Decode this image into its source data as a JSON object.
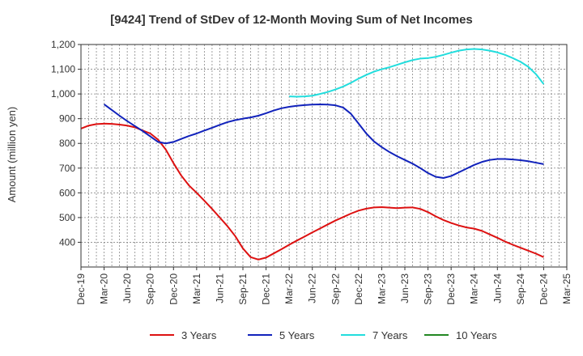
{
  "chart_data": {
    "type": "line",
    "title": "[9424]  Trend of StDev of 12-Month Moving Sum of Net Incomes",
    "ylabel": "Amount (million yen)",
    "xlabel": "",
    "ylim": [
      300,
      1200
    ],
    "y_ticks": [
      400,
      500,
      600,
      700,
      800,
      900,
      1000,
      1100,
      1200
    ],
    "y_tick_labels": [
      "400",
      "500",
      "600",
      "700",
      "800",
      "900",
      "1,000",
      "1,100",
      "1,200"
    ],
    "x_ticks": [
      "Dec-19",
      "Mar-20",
      "Jun-20",
      "Sep-20",
      "Dec-20",
      "Mar-21",
      "Jun-21",
      "Sep-21",
      "Dec-21",
      "Mar-22",
      "Jun-22",
      "Sep-22",
      "Dec-22",
      "Mar-23",
      "Jun-23",
      "Sep-23",
      "Dec-23",
      "Mar-24",
      "Jun-24",
      "Sep-24",
      "Dec-24",
      "Mar-25"
    ],
    "grid": true,
    "legend_position": "bottom",
    "series": [
      {
        "name": "3 Years",
        "color": "#dd1111",
        "points": [
          [
            "Dec-19",
            860
          ],
          [
            "Jan-20",
            872
          ],
          [
            "Feb-20",
            878
          ],
          [
            "Mar-20",
            880
          ],
          [
            "Apr-20",
            879
          ],
          [
            "May-20",
            876
          ],
          [
            "Jun-20",
            872
          ],
          [
            "Jul-20",
            865
          ],
          [
            "Aug-20",
            852
          ],
          [
            "Sep-20",
            840
          ],
          [
            "Oct-20",
            815
          ],
          [
            "Nov-20",
            775
          ],
          [
            "Dec-20",
            720
          ],
          [
            "Jan-21",
            670
          ],
          [
            "Feb-21",
            630
          ],
          [
            "Mar-21",
            600
          ],
          [
            "Apr-21",
            568
          ],
          [
            "May-21",
            535
          ],
          [
            "Jun-21",
            500
          ],
          [
            "Jul-21",
            465
          ],
          [
            "Aug-21",
            425
          ],
          [
            "Sep-21",
            375
          ],
          [
            "Oct-21",
            340
          ],
          [
            "Nov-21",
            330
          ],
          [
            "Dec-21",
            338
          ],
          [
            "Jan-22",
            355
          ],
          [
            "Feb-22",
            372
          ],
          [
            "Mar-22",
            390
          ],
          [
            "Apr-22",
            407
          ],
          [
            "May-22",
            423
          ],
          [
            "Jun-22",
            440
          ],
          [
            "Jul-22",
            456
          ],
          [
            "Aug-22",
            472
          ],
          [
            "Sep-22",
            488
          ],
          [
            "Oct-22",
            502
          ],
          [
            "Nov-22",
            516
          ],
          [
            "Dec-22",
            528
          ],
          [
            "Jan-23",
            536
          ],
          [
            "Feb-23",
            541
          ],
          [
            "Mar-23",
            542
          ],
          [
            "Apr-23",
            540
          ],
          [
            "May-23",
            538
          ],
          [
            "Jun-23",
            540
          ],
          [
            "Jul-23",
            541
          ],
          [
            "Aug-23",
            535
          ],
          [
            "Sep-23",
            522
          ],
          [
            "Oct-23",
            505
          ],
          [
            "Nov-23",
            490
          ],
          [
            "Dec-23",
            478
          ],
          [
            "Jan-24",
            468
          ],
          [
            "Feb-24",
            460
          ],
          [
            "Mar-24",
            455
          ],
          [
            "Apr-24",
            446
          ],
          [
            "May-24",
            432
          ],
          [
            "Jun-24",
            418
          ],
          [
            "Jul-24",
            403
          ],
          [
            "Aug-24",
            390
          ],
          [
            "Sep-24",
            378
          ],
          [
            "Oct-24",
            366
          ],
          [
            "Nov-24",
            354
          ],
          [
            "Dec-24",
            340
          ]
        ]
      },
      {
        "name": "5 Years",
        "color": "#1122bb",
        "points": [
          [
            "Mar-20",
            958
          ],
          [
            "Apr-20",
            935
          ],
          [
            "May-20",
            912
          ],
          [
            "Jun-20",
            890
          ],
          [
            "Jul-20",
            870
          ],
          [
            "Aug-20",
            850
          ],
          [
            "Sep-20",
            828
          ],
          [
            "Oct-20",
            806
          ],
          [
            "Nov-20",
            800
          ],
          [
            "Dec-20",
            806
          ],
          [
            "Jan-21",
            818
          ],
          [
            "Feb-21",
            830
          ],
          [
            "Mar-21",
            840
          ],
          [
            "Apr-21",
            852
          ],
          [
            "May-21",
            863
          ],
          [
            "Jun-21",
            875
          ],
          [
            "Jul-21",
            886
          ],
          [
            "Aug-21",
            894
          ],
          [
            "Sep-21",
            900
          ],
          [
            "Oct-21",
            905
          ],
          [
            "Nov-21",
            912
          ],
          [
            "Dec-21",
            922
          ],
          [
            "Jan-22",
            933
          ],
          [
            "Feb-22",
            942
          ],
          [
            "Mar-22",
            948
          ],
          [
            "Apr-22",
            952
          ],
          [
            "May-22",
            955
          ],
          [
            "Jun-22",
            957
          ],
          [
            "Jul-22",
            958
          ],
          [
            "Aug-22",
            957
          ],
          [
            "Sep-22",
            954
          ],
          [
            "Oct-22",
            945
          ],
          [
            "Nov-22",
            920
          ],
          [
            "Dec-22",
            880
          ],
          [
            "Jan-23",
            840
          ],
          [
            "Feb-23",
            808
          ],
          [
            "Mar-23",
            785
          ],
          [
            "Apr-23",
            765
          ],
          [
            "May-23",
            748
          ],
          [
            "Jun-23",
            733
          ],
          [
            "Jul-23",
            718
          ],
          [
            "Aug-23",
            700
          ],
          [
            "Sep-23",
            680
          ],
          [
            "Oct-23",
            665
          ],
          [
            "Nov-23",
            660
          ],
          [
            "Dec-23",
            668
          ],
          [
            "Jan-24",
            683
          ],
          [
            "Feb-24",
            698
          ],
          [
            "Mar-24",
            713
          ],
          [
            "Apr-24",
            725
          ],
          [
            "May-24",
            733
          ],
          [
            "Jun-24",
            737
          ],
          [
            "Jul-24",
            737
          ],
          [
            "Aug-24",
            735
          ],
          [
            "Sep-24",
            732
          ],
          [
            "Oct-24",
            728
          ],
          [
            "Nov-24",
            722
          ],
          [
            "Dec-24",
            716
          ]
        ]
      },
      {
        "name": "7 Years",
        "color": "#22dddd",
        "points": [
          [
            "Mar-22",
            990
          ],
          [
            "Apr-22",
            989
          ],
          [
            "May-22",
            990
          ],
          [
            "Jun-22",
            993
          ],
          [
            "Jul-22",
            1000
          ],
          [
            "Aug-22",
            1008
          ],
          [
            "Sep-22",
            1018
          ],
          [
            "Oct-22",
            1030
          ],
          [
            "Nov-22",
            1045
          ],
          [
            "Dec-22",
            1062
          ],
          [
            "Jan-23",
            1077
          ],
          [
            "Feb-23",
            1090
          ],
          [
            "Mar-23",
            1100
          ],
          [
            "Apr-23",
            1108
          ],
          [
            "May-23",
            1118
          ],
          [
            "Jun-23",
            1128
          ],
          [
            "Jul-23",
            1137
          ],
          [
            "Aug-23",
            1143
          ],
          [
            "Sep-23",
            1145
          ],
          [
            "Oct-23",
            1150
          ],
          [
            "Nov-23",
            1158
          ],
          [
            "Dec-23",
            1167
          ],
          [
            "Jan-24",
            1175
          ],
          [
            "Feb-24",
            1180
          ],
          [
            "Mar-24",
            1182
          ],
          [
            "Apr-24",
            1180
          ],
          [
            "May-24",
            1175
          ],
          [
            "Jun-24",
            1168
          ],
          [
            "Jul-24",
            1158
          ],
          [
            "Aug-24",
            1145
          ],
          [
            "Sep-24",
            1130
          ],
          [
            "Oct-24",
            1110
          ],
          [
            "Nov-24",
            1080
          ],
          [
            "Dec-24",
            1040
          ]
        ]
      },
      {
        "name": "10 Years",
        "color": "#228822",
        "points": []
      }
    ]
  }
}
